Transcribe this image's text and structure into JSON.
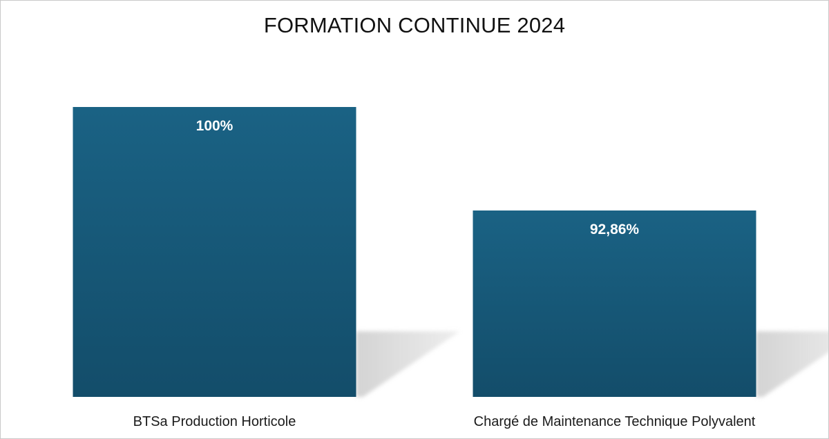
{
  "chart_data": {
    "type": "bar",
    "title": "FORMATION CONTINUE 2024",
    "xlabel": "",
    "ylabel": "",
    "categories": [
      "BTSa Production Horticole",
      "Chargé de Maintenance Technique Polyvalent"
    ],
    "values": [
      100,
      92.86
    ],
    "value_labels": [
      "100%",
      "92,86%"
    ],
    "ylim": [
      80,
      100
    ],
    "grid": false,
    "legend": "none",
    "colors": {
      "bar_top": "#1a6284",
      "bar_bottom": "#134d6a",
      "shadow": "#cfcfcf"
    }
  }
}
